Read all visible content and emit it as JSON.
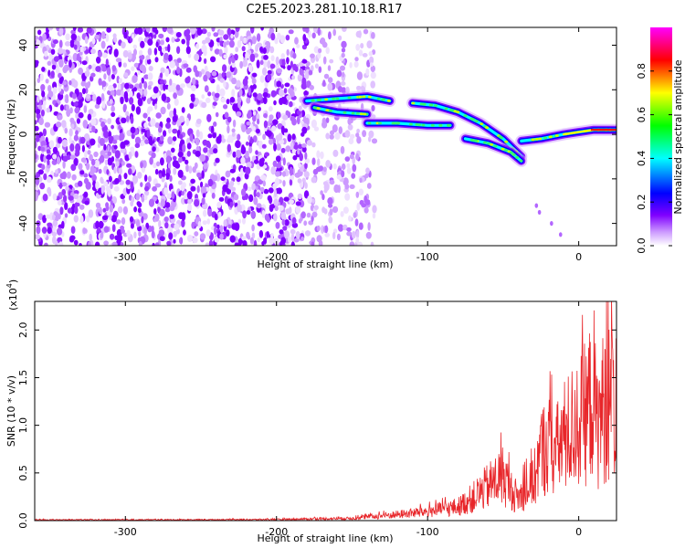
{
  "title": "C2E5.2023.281.10.18.R17",
  "chart_data": [
    {
      "type": "heatmap",
      "xlabel": "Height of straight line (km)",
      "ylabel": "Frequency (Hz)",
      "xlim": [
        -360,
        25
      ],
      "ylim": [
        -50,
        48
      ],
      "x_ticks": [
        -300,
        -200,
        -100,
        0
      ],
      "y_ticks": [
        -40,
        -20,
        0,
        20,
        40
      ],
      "colorbar": {
        "label": "Normalized spectral amplitude",
        "range": [
          0.0,
          1.0
        ],
        "ticks": [
          0.0,
          0.2,
          0.4,
          0.6,
          0.8
        ],
        "colors": [
          "#ffffff",
          "#7f00ff",
          "#0000ff",
          "#00ffff",
          "#00ff00",
          "#ffff00",
          "#ff0000",
          "#ff00ff"
        ]
      },
      "features": {
        "noise_region_x": [
          -360,
          -140
        ],
        "noise_dense_x": [
          -360,
          -180
        ],
        "signal_branches": [
          {
            "x": [
              -180,
              -160,
              -140,
              -125
            ],
            "y": [
              15,
              16,
              17,
              15
            ]
          },
          {
            "x": [
              -175,
              -160,
              -140
            ],
            "y": [
              12,
              10,
              9
            ]
          },
          {
            "x": [
              -140,
              -120,
              -100,
              -85
            ],
            "y": [
              5,
              5,
              4,
              4
            ]
          },
          {
            "x": [
              -110,
              -95,
              -80,
              -65,
              -50,
              -38
            ],
            "y": [
              14,
              13,
              10,
              5,
              -2,
              -10
            ]
          },
          {
            "x": [
              -75,
              -60,
              -45,
              -38
            ],
            "y": [
              -2,
              -4,
              -8,
              -12
            ]
          },
          {
            "x": [
              -38,
              -25,
              -10,
              0,
              10,
              25
            ],
            "y": [
              -3,
              -2,
              0,
              1,
              2,
              2
            ]
          }
        ]
      }
    },
    {
      "type": "line",
      "xlabel": "Height of straight line (km)",
      "ylabel": "SNR (10 * v/v)",
      "y_multiplier": "(x10",
      "y_multiplier_exp": "4",
      "y_multiplier_close": ")",
      "xlim": [
        -360,
        25
      ],
      "ylim": [
        0,
        2.3
      ],
      "x_ticks": [
        -300,
        -200,
        -100,
        0
      ],
      "y_ticks": [
        0.0,
        0.5,
        1.0,
        1.5,
        2.0
      ],
      "y_tick_labels": [
        "0.0",
        "0.5",
        "1.0",
        "1.5",
        "2.0"
      ],
      "series": [
        {
          "color": "#e8262a",
          "x": [
            -360,
            -300,
            -250,
            -200,
            -150,
            -120,
            -100,
            -80,
            -70,
            -60,
            -50,
            -45,
            -40,
            -30,
            -25,
            -20,
            -15,
            -10,
            -5,
            0,
            5,
            10,
            12,
            15,
            20,
            25
          ],
          "y": [
            0.01,
            0.01,
            0.012,
            0.015,
            0.03,
            0.08,
            0.12,
            0.18,
            0.3,
            0.45,
            0.6,
            0.4,
            0.3,
            0.5,
            0.9,
            1.0,
            0.9,
            1.1,
            1.2,
            1.3,
            1.4,
            1.7,
            1.2,
            1.45,
            1.55,
            1.6
          ]
        }
      ]
    }
  ]
}
